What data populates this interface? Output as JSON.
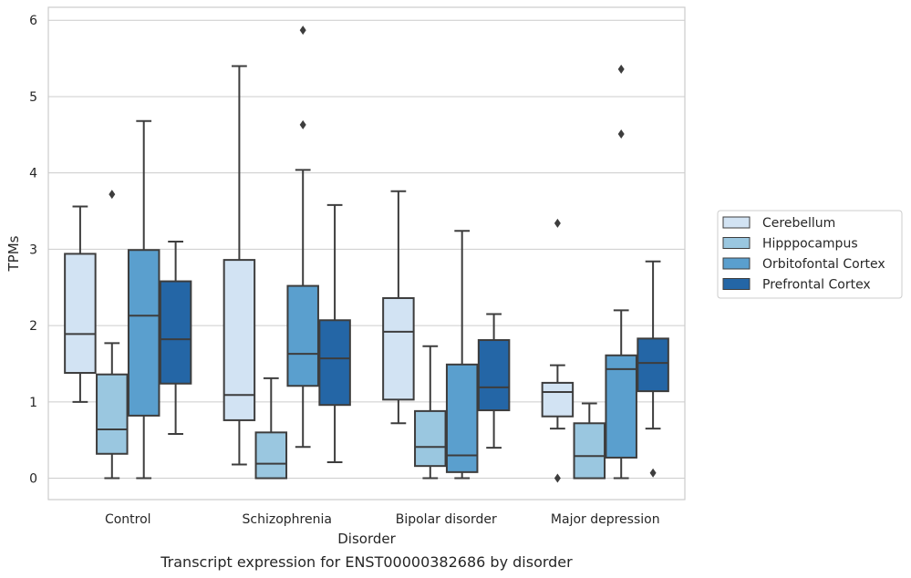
{
  "chart_data": {
    "type": "boxplot",
    "title": "",
    "caption": "Transcript expression for ENST00000382686 by disorder",
    "xlabel": "Disorder",
    "ylabel": "TPMs",
    "ylim": [
      -0.28,
      6.17
    ],
    "yticks": [
      0,
      1,
      2,
      3,
      4,
      5,
      6
    ],
    "categories": [
      "Control",
      "Schizophrenia",
      "Bipolar disorder",
      "Major depression"
    ],
    "grid": "horizontal",
    "legend_position": "right",
    "series": [
      {
        "name": "Cerebellum",
        "color": "#d2e3f3",
        "boxes": [
          {
            "whisker_low": 1.0,
            "q1": 1.38,
            "median": 1.89,
            "q3": 2.94,
            "whisker_high": 3.56,
            "outliers": []
          },
          {
            "whisker_low": 0.18,
            "q1": 0.76,
            "median": 1.09,
            "q3": 2.86,
            "whisker_high": 5.4,
            "outliers": []
          },
          {
            "whisker_low": 0.72,
            "q1": 1.03,
            "median": 1.92,
            "q3": 2.36,
            "whisker_high": 3.76,
            "outliers": []
          },
          {
            "whisker_low": 0.65,
            "q1": 0.81,
            "median": 1.13,
            "q3": 1.25,
            "whisker_high": 1.48,
            "outliers": [
              0.0,
              3.34
            ]
          }
        ]
      },
      {
        "name": "Hipppocampus",
        "color": "#9ac7e0",
        "boxes": [
          {
            "whisker_low": 0.0,
            "q1": 0.32,
            "median": 0.64,
            "q3": 1.36,
            "whisker_high": 1.77,
            "outliers": [
              3.72
            ]
          },
          {
            "whisker_low": 0.0,
            "q1": 0.0,
            "median": 0.19,
            "q3": 0.6,
            "whisker_high": 1.31,
            "outliers": []
          },
          {
            "whisker_low": 0.0,
            "q1": 0.16,
            "median": 0.41,
            "q3": 0.88,
            "whisker_high": 1.73,
            "outliers": []
          },
          {
            "whisker_low": 0.0,
            "q1": 0.0,
            "median": 0.29,
            "q3": 0.72,
            "whisker_high": 0.98,
            "outliers": []
          }
        ]
      },
      {
        "name": "Orbitofontal Cortex",
        "color": "#5a9fce",
        "boxes": [
          {
            "whisker_low": 0.0,
            "q1": 0.82,
            "median": 2.13,
            "q3": 2.99,
            "whisker_high": 4.68,
            "outliers": []
          },
          {
            "whisker_low": 0.41,
            "q1": 1.21,
            "median": 1.63,
            "q3": 2.52,
            "whisker_high": 4.04,
            "outliers": [
              4.63,
              5.87
            ]
          },
          {
            "whisker_low": 0.0,
            "q1": 0.08,
            "median": 0.3,
            "q3": 1.49,
            "whisker_high": 3.24,
            "outliers": []
          },
          {
            "whisker_low": 0.0,
            "q1": 0.27,
            "median": 1.43,
            "q3": 1.61,
            "whisker_high": 2.2,
            "outliers": [
              4.51,
              5.36
            ]
          }
        ]
      },
      {
        "name": "Prefrontal Cortex",
        "color": "#2466a6",
        "boxes": [
          {
            "whisker_low": 0.58,
            "q1": 1.24,
            "median": 1.82,
            "q3": 2.58,
            "whisker_high": 3.1,
            "outliers": []
          },
          {
            "whisker_low": 0.21,
            "q1": 0.96,
            "median": 1.57,
            "q3": 2.07,
            "whisker_high": 3.58,
            "outliers": []
          },
          {
            "whisker_low": 0.4,
            "q1": 0.89,
            "median": 1.19,
            "q3": 1.81,
            "whisker_high": 2.15,
            "outliers": []
          },
          {
            "whisker_low": 0.65,
            "q1": 1.14,
            "median": 1.51,
            "q3": 1.83,
            "whisker_high": 2.84,
            "outliers": [
              0.07
            ]
          }
        ]
      }
    ]
  }
}
